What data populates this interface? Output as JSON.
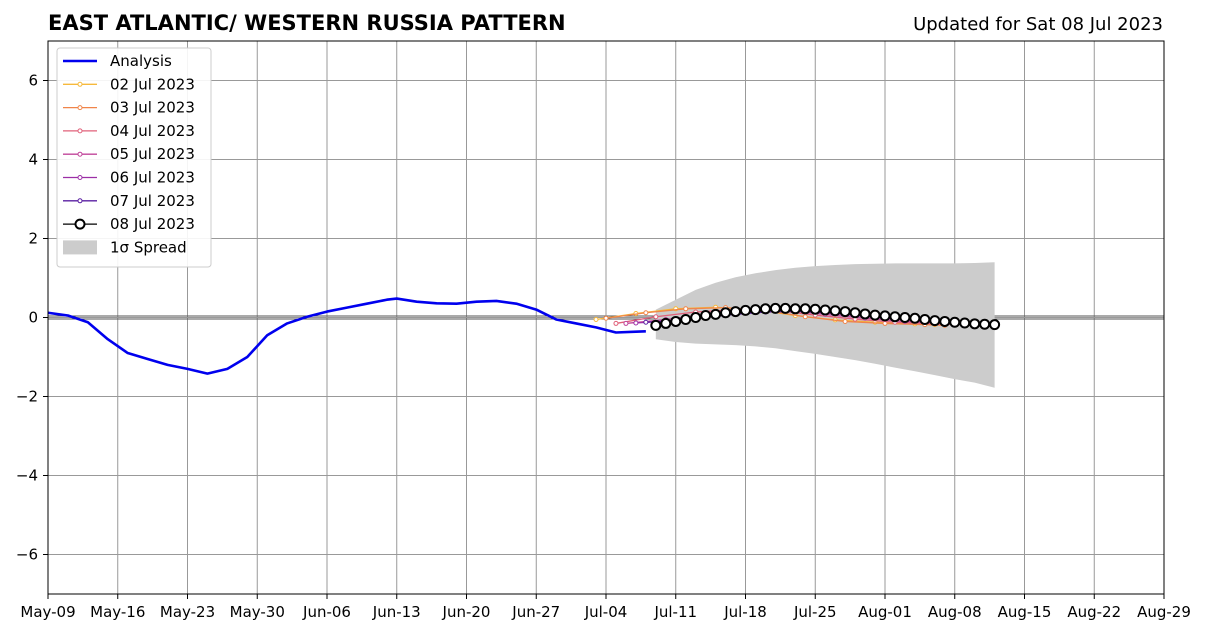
{
  "chart_data": {
    "type": "line",
    "title": "EAST ATLANTIC/ WESTERN RUSSIA PATTERN",
    "subtitle": "Updated for Sat 08 Jul 2023",
    "xlabel": "",
    "ylabel": "",
    "xlim": [
      "2023-05-09",
      "2023-08-29"
    ],
    "ylim": [
      -7,
      7
    ],
    "x_ticks": [
      "May-09",
      "May-16",
      "May-23",
      "May-30",
      "Jun-06",
      "Jun-13",
      "Jun-20",
      "Jun-27",
      "Jul-04",
      "Jul-11",
      "Jul-18",
      "Jul-25",
      "Aug-01",
      "Aug-08",
      "Aug-15",
      "Aug-22",
      "Aug-29"
    ],
    "y_ticks": [
      -6,
      -4,
      -2,
      0,
      2,
      4,
      6
    ],
    "y_tick_labels": [
      "−6",
      "−4",
      "−2",
      "0",
      "2",
      "4",
      "6"
    ],
    "grid": true,
    "legend_position": "top-left",
    "series": [
      {
        "name": "Analysis",
        "color": "#0000ee",
        "marker": "none",
        "x": [
          "2023-05-09",
          "2023-05-11",
          "2023-05-13",
          "2023-05-15",
          "2023-05-17",
          "2023-05-19",
          "2023-05-21",
          "2023-05-23",
          "2023-05-25",
          "2023-05-27",
          "2023-05-29",
          "2023-05-31",
          "2023-06-02",
          "2023-06-04",
          "2023-06-06",
          "2023-06-08",
          "2023-06-10",
          "2023-06-12",
          "2023-06-13",
          "2023-06-15",
          "2023-06-17",
          "2023-06-19",
          "2023-06-21",
          "2023-06-23",
          "2023-06-25",
          "2023-06-27",
          "2023-06-29",
          "2023-07-01",
          "2023-07-03",
          "2023-07-05",
          "2023-07-07",
          "2023-07-08"
        ],
        "y": [
          0.12,
          0.05,
          -0.12,
          -0.55,
          -0.9,
          -1.05,
          -1.2,
          -1.3,
          -1.42,
          -1.3,
          -1.0,
          -0.45,
          -0.15,
          0.02,
          0.15,
          0.25,
          0.35,
          0.45,
          0.48,
          0.4,
          0.36,
          0.35,
          0.4,
          0.42,
          0.35,
          0.2,
          -0.05,
          -0.15,
          -0.25,
          -0.38,
          -0.36,
          -0.35
        ]
      },
      {
        "name": "02 Jul 2023",
        "color": "#f6b93b",
        "marker": "dot",
        "x": [
          "2023-07-03",
          "2023-07-07",
          "2023-07-11",
          "2023-07-15",
          "2023-07-19",
          "2023-07-23",
          "2023-07-27",
          "2023-07-31",
          "2023-08-04",
          "2023-08-06"
        ],
        "y": [
          -0.05,
          0.1,
          0.22,
          0.26,
          0.2,
          0.05,
          -0.06,
          -0.12,
          -0.16,
          -0.18
        ]
      },
      {
        "name": "03 Jul 2023",
        "color": "#f0854a",
        "marker": "dot",
        "x": [
          "2023-07-04",
          "2023-07-08",
          "2023-07-12",
          "2023-07-16",
          "2023-07-20",
          "2023-07-24",
          "2023-07-28",
          "2023-08-01",
          "2023-08-05",
          "2023-08-07"
        ],
        "y": [
          -0.02,
          0.12,
          0.22,
          0.25,
          0.18,
          0.02,
          -0.1,
          -0.15,
          -0.18,
          -0.2
        ]
      },
      {
        "name": "04 Jul 2023",
        "color": "#e0607a",
        "marker": "dot",
        "x": [
          "2023-07-05",
          "2023-07-09",
          "2023-07-13",
          "2023-07-17",
          "2023-07-21",
          "2023-07-25",
          "2023-07-29",
          "2023-08-02",
          "2023-08-06",
          "2023-08-08"
        ],
        "y": [
          -0.15,
          0.02,
          0.14,
          0.2,
          0.18,
          0.06,
          -0.04,
          -0.12,
          -0.16,
          -0.18
        ]
      },
      {
        "name": "05 Jul 2023",
        "color": "#c0449a",
        "marker": "dot",
        "x": [
          "2023-07-06",
          "2023-07-10",
          "2023-07-14",
          "2023-07-18",
          "2023-07-22",
          "2023-07-26",
          "2023-07-30",
          "2023-08-03",
          "2023-08-07",
          "2023-08-09"
        ],
        "y": [
          -0.15,
          -0.05,
          0.08,
          0.16,
          0.18,
          0.08,
          -0.02,
          -0.1,
          -0.15,
          -0.18
        ]
      },
      {
        "name": "06 Jul 2023",
        "color": "#9c2fa6",
        "marker": "dot",
        "x": [
          "2023-07-07",
          "2023-07-11",
          "2023-07-15",
          "2023-07-19",
          "2023-07-23",
          "2023-07-27",
          "2023-07-31",
          "2023-08-04",
          "2023-08-08",
          "2023-08-10"
        ],
        "y": [
          -0.14,
          -0.08,
          0.04,
          0.14,
          0.16,
          0.1,
          0.0,
          -0.08,
          -0.14,
          -0.17
        ]
      },
      {
        "name": "07 Jul 2023",
        "color": "#5a1fa2",
        "marker": "dot",
        "x": [
          "2023-07-08",
          "2023-07-12",
          "2023-07-16",
          "2023-07-20",
          "2023-07-24",
          "2023-07-28",
          "2023-08-01",
          "2023-08-05",
          "2023-08-09",
          "2023-08-11"
        ],
        "y": [
          -0.12,
          -0.06,
          0.06,
          0.14,
          0.16,
          0.1,
          0.0,
          -0.08,
          -0.14,
          -0.18
        ]
      },
      {
        "name": "08 Jul 2023",
        "color": "#000000",
        "marker": "circle",
        "x": [
          "2023-07-09",
          "2023-07-10",
          "2023-07-11",
          "2023-07-12",
          "2023-07-13",
          "2023-07-14",
          "2023-07-15",
          "2023-07-16",
          "2023-07-17",
          "2023-07-18",
          "2023-07-19",
          "2023-07-20",
          "2023-07-21",
          "2023-07-22",
          "2023-07-23",
          "2023-07-24",
          "2023-07-25",
          "2023-07-26",
          "2023-07-27",
          "2023-07-28",
          "2023-07-29",
          "2023-07-30",
          "2023-07-31",
          "2023-08-01",
          "2023-08-02",
          "2023-08-03",
          "2023-08-04",
          "2023-08-05",
          "2023-08-06",
          "2023-08-07",
          "2023-08-08",
          "2023-08-09",
          "2023-08-10",
          "2023-08-11",
          "2023-08-12"
        ],
        "y": [
          -0.2,
          -0.15,
          -0.1,
          -0.05,
          0.0,
          0.05,
          0.08,
          0.12,
          0.15,
          0.18,
          0.2,
          0.22,
          0.23,
          0.23,
          0.22,
          0.22,
          0.21,
          0.19,
          0.17,
          0.15,
          0.12,
          0.09,
          0.06,
          0.04,
          0.02,
          0.0,
          -0.02,
          -0.05,
          -0.08,
          -0.1,
          -0.12,
          -0.14,
          -0.16,
          -0.17,
          -0.18
        ]
      }
    ],
    "spread": {
      "name": "1σ Spread",
      "color": "#cccccc",
      "x": [
        "2023-07-09",
        "2023-07-11",
        "2023-07-13",
        "2023-07-15",
        "2023-07-17",
        "2023-07-19",
        "2023-07-21",
        "2023-07-23",
        "2023-07-25",
        "2023-07-27",
        "2023-07-29",
        "2023-07-31",
        "2023-08-02",
        "2023-08-04",
        "2023-08-06",
        "2023-08-08",
        "2023-08-10",
        "2023-08-12"
      ],
      "upper": [
        0.2,
        0.45,
        0.7,
        0.88,
        1.02,
        1.12,
        1.2,
        1.26,
        1.3,
        1.33,
        1.35,
        1.36,
        1.37,
        1.37,
        1.37,
        1.37,
        1.38,
        1.4
      ],
      "lower": [
        -0.55,
        -0.62,
        -0.66,
        -0.68,
        -0.7,
        -0.73,
        -0.78,
        -0.85,
        -0.92,
        -1.0,
        -1.08,
        -1.17,
        -1.27,
        -1.36,
        -1.46,
        -1.56,
        -1.65,
        -1.78
      ]
    }
  }
}
